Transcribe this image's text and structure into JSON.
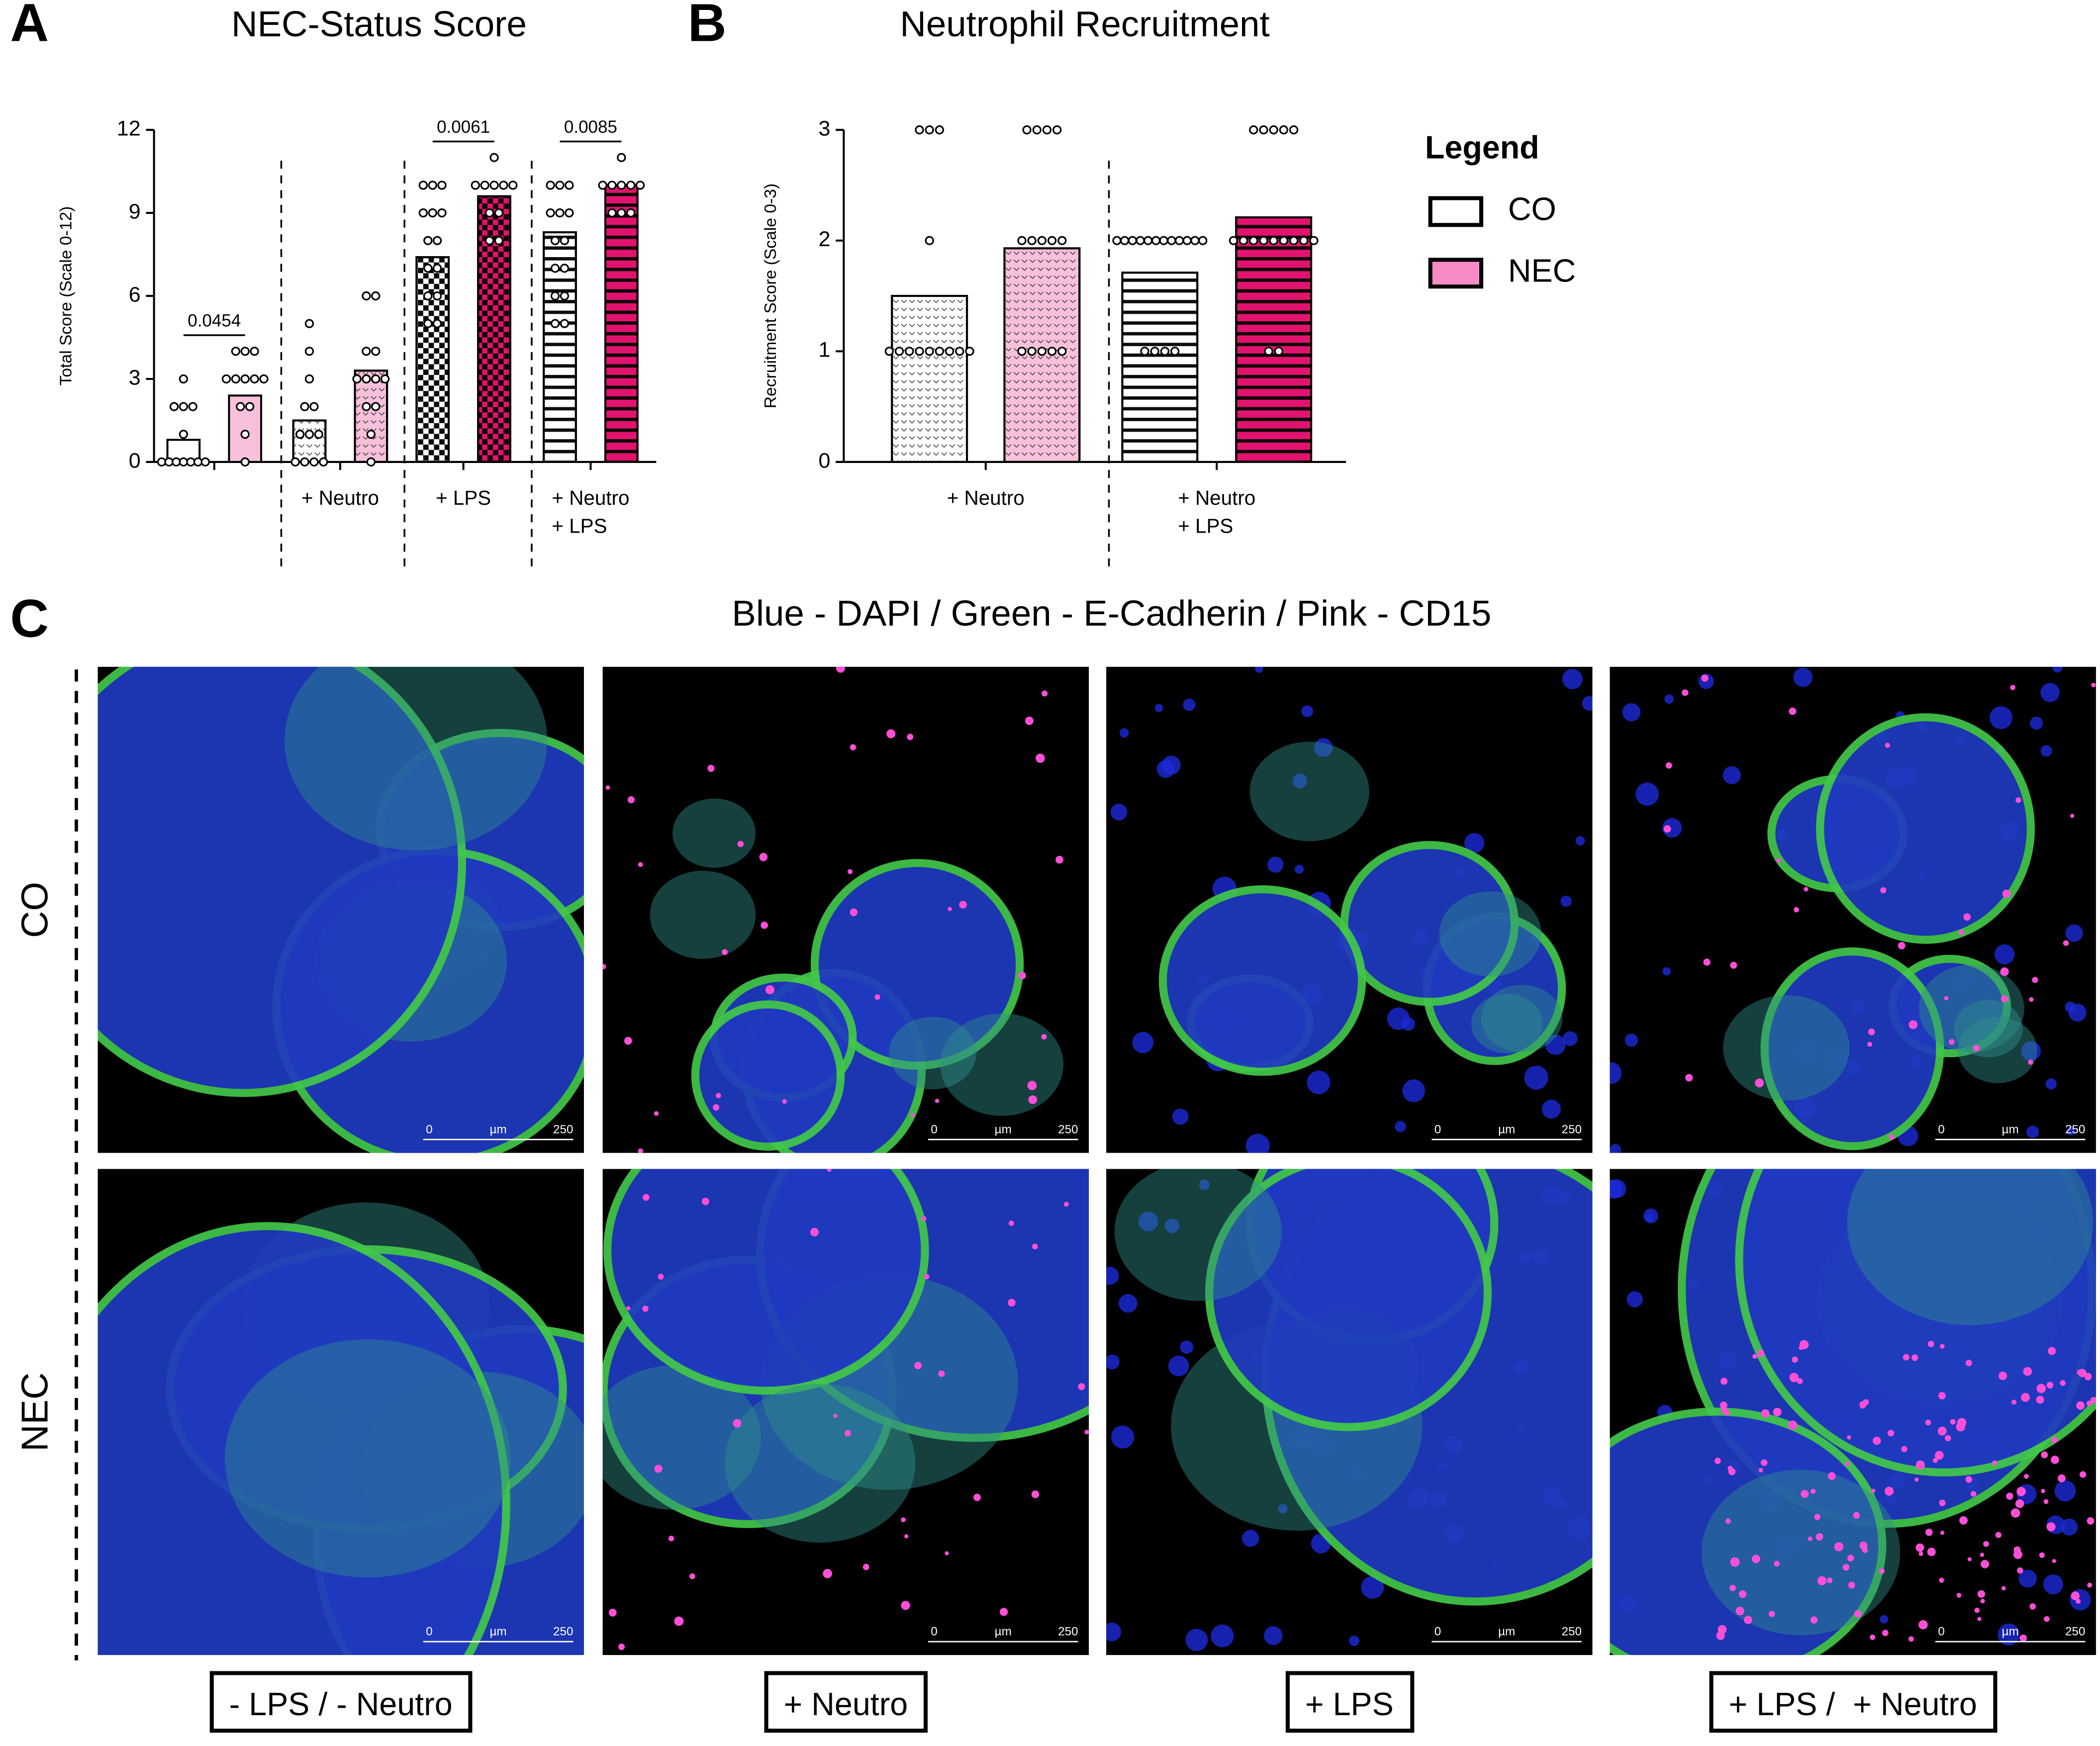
{
  "panel_labels": [
    "A",
    "B",
    "C"
  ],
  "chart_data": [
    {
      "type": "bar",
      "title": "NEC-Status Score",
      "ylabel": "Total Score (Scale 0-12)",
      "categories": [
        null,
        "+ Neutro",
        "+ LPS",
        "+ Neutro\n+ LPS"
      ],
      "patterns": [
        "none",
        "dots",
        "checker",
        "stripes"
      ],
      "ylim": [
        0,
        12
      ],
      "yticks": [
        0,
        3,
        6,
        9,
        12
      ],
      "pvalues": [
        "0.0454",
        null,
        "0.0061",
        "0.0085"
      ],
      "series": [
        {
          "name": "CO",
          "color": "#ffffff",
          "colors": [
            "#ffffff",
            "#ffffff",
            "#ffffff",
            "#ffffff"
          ],
          "values": [
            0.8,
            1.5,
            7.4,
            8.3
          ],
          "points": [
            [
              3,
              2,
              2,
              2,
              1,
              0,
              0,
              0,
              0,
              0,
              0,
              0
            ],
            [
              5,
              4,
              3,
              2,
              2,
              1,
              1,
              1,
              0,
              0,
              0,
              0
            ],
            [
              10,
              10,
              10,
              9,
              9,
              9,
              8,
              8,
              7,
              7,
              6,
              6,
              5,
              5
            ],
            [
              10,
              10,
              10,
              9,
              9,
              9,
              8,
              8,
              7,
              7,
              6,
              6,
              5,
              5
            ]
          ]
        },
        {
          "name": "NEC",
          "color": "#f78bc6",
          "colors": [
            "#f9c0dc",
            "#f9c0dc",
            "#e2136e",
            "#e2136e"
          ],
          "values": [
            2.4,
            3.3,
            9.6,
            10.0
          ],
          "points": [
            [
              4,
              4,
              4,
              3,
              3,
              3,
              3,
              3,
              2,
              2,
              1,
              0
            ],
            [
              6,
              6,
              4,
              4,
              3,
              3,
              3,
              3,
              2,
              2,
              1,
              0
            ],
            [
              11,
              10,
              10,
              10,
              10,
              10,
              9,
              9,
              8,
              8
            ],
            [
              11,
              10,
              10,
              10,
              10,
              10,
              9,
              9,
              9
            ]
          ]
        }
      ]
    },
    {
      "type": "bar",
      "title": "Neutrophil Recruitment",
      "ylabel": "Recruitment Score (Scale 0-3)",
      "categories": [
        "+ Neutro",
        "+ Neutro\n+ LPS"
      ],
      "patterns": [
        "dots",
        "stripes"
      ],
      "ylim": [
        0,
        3
      ],
      "yticks": [
        0,
        1,
        2,
        3
      ],
      "legend": "right",
      "legend_title": "Legend",
      "series": [
        {
          "name": "CO",
          "color": "#ffffff",
          "colors": [
            "#ffffff",
            "#ffffff"
          ],
          "values": [
            1.5,
            1.71
          ],
          "points": [
            [
              3,
              3,
              3,
              2,
              1,
              1,
              1,
              1,
              1,
              1,
              1,
              1,
              1
            ],
            [
              2,
              2,
              2,
              2,
              2,
              2,
              2,
              2,
              2,
              2,
              2,
              2,
              1,
              1,
              1,
              1
            ]
          ]
        },
        {
          "name": "NEC",
          "color": "#f78bc6",
          "colors": [
            "#f9c0dc",
            "#e2136e"
          ],
          "values": [
            1.93,
            2.21
          ],
          "points": [
            [
              3,
              3,
              3,
              3,
              2,
              2,
              2,
              2,
              2,
              1,
              1,
              1,
              1,
              1
            ],
            [
              3,
              3,
              3,
              3,
              3,
              2,
              2,
              2,
              2,
              2,
              2,
              2,
              2,
              2,
              1,
              1
            ]
          ]
        }
      ]
    }
  ],
  "microscopy": {
    "title": "Blue - DAPI / Green - E-Cadherin / Pink - CD15",
    "rows": [
      "CO",
      "NEC"
    ],
    "columns": [
      "- LPS / - Neutro",
      "+ Neutro",
      "+ LPS",
      "+ LPS /  + Neutro"
    ],
    "scale_bar": {
      "start": "0",
      "unit": "µm",
      "end": "250"
    }
  }
}
